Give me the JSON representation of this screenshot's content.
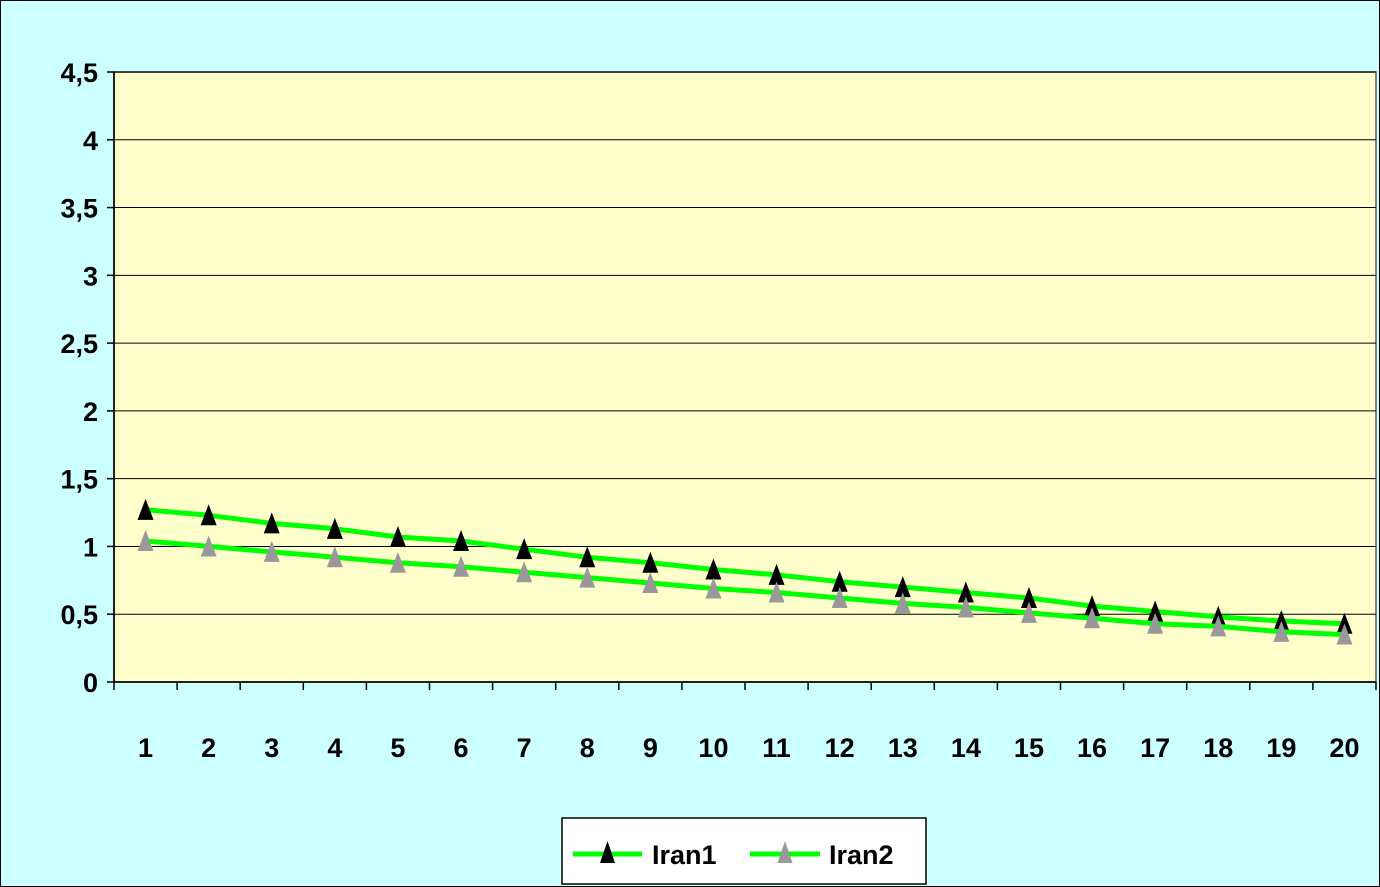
{
  "chart_data": {
    "type": "line",
    "categories": [
      "1",
      "2",
      "3",
      "4",
      "5",
      "6",
      "7",
      "8",
      "9",
      "10",
      "11",
      "12",
      "13",
      "14",
      "15",
      "16",
      "17",
      "18",
      "19",
      "20"
    ],
    "ylim": [
      0,
      4.5
    ],
    "yticks": [
      "0",
      "0,5",
      "1",
      "1,5",
      "2",
      "2,5",
      "3",
      "3,5",
      "4",
      "4,5"
    ],
    "grid": true,
    "legend_position": "bottom",
    "colors": {
      "page_background": "#ccffff",
      "plot_background": "#ffffcc",
      "line": "#00ff00",
      "marker_series1": "#000000",
      "marker_series2": "#999999"
    },
    "series": [
      {
        "name": "Iran1",
        "marker": "triangle",
        "values": [
          1.27,
          1.23,
          1.17,
          1.13,
          1.07,
          1.04,
          0.98,
          0.92,
          0.88,
          0.83,
          0.79,
          0.74,
          0.7,
          0.66,
          0.62,
          0.56,
          0.52,
          0.48,
          0.45,
          0.43
        ]
      },
      {
        "name": "Iran2",
        "marker": "triangle",
        "values": [
          1.04,
          1.0,
          0.96,
          0.92,
          0.88,
          0.85,
          0.81,
          0.77,
          0.73,
          0.69,
          0.66,
          0.62,
          0.58,
          0.55,
          0.51,
          0.47,
          0.43,
          0.41,
          0.37,
          0.35
        ]
      }
    ]
  }
}
